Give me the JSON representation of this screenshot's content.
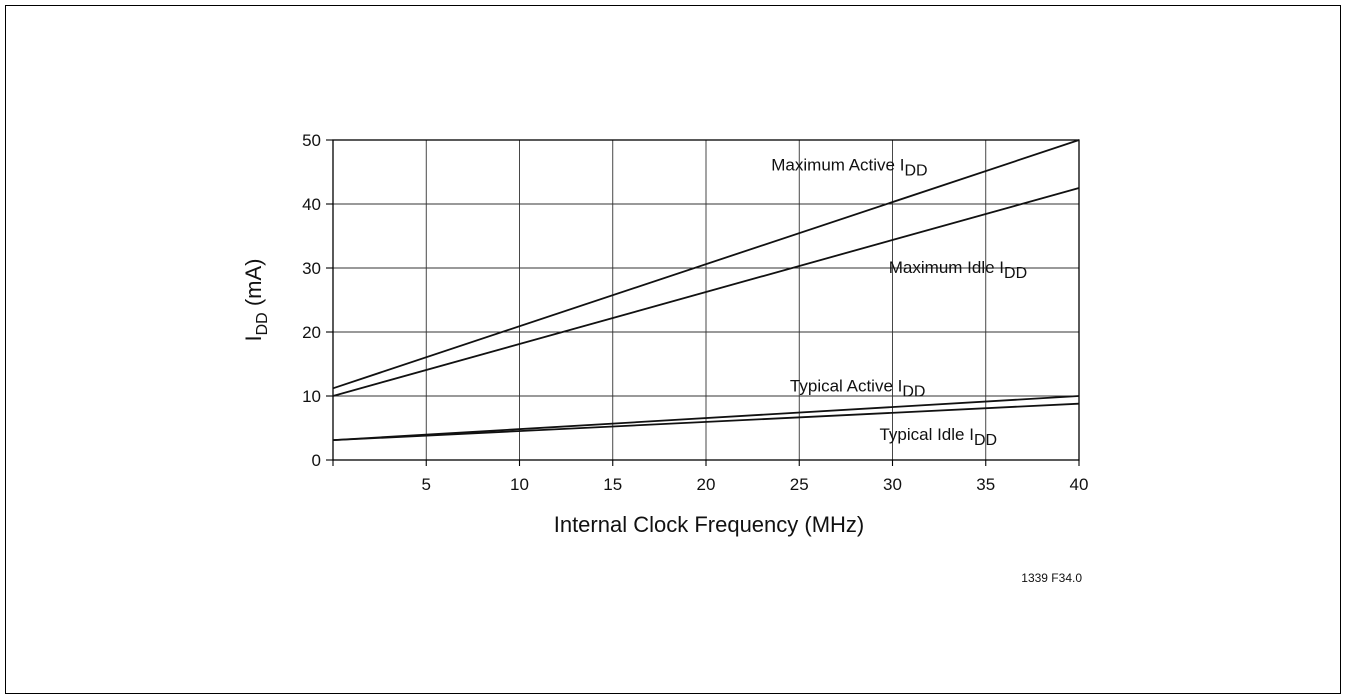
{
  "chart_data": {
    "type": "line",
    "xlabel": "Internal Clock Frequency (MHz)",
    "ylabel_main": "I",
    "ylabel_sub": "DD",
    "ylabel_tail": " (mA)",
    "xlim": [
      0,
      40
    ],
    "ylim": [
      0,
      50
    ],
    "x_ticks": [
      5,
      10,
      15,
      20,
      25,
      30,
      35,
      40
    ],
    "y_ticks": [
      0,
      10,
      20,
      30,
      40,
      50
    ],
    "grid": true,
    "series": [
      {
        "label_main": "Maximum Active I",
        "label_sub": "DD",
        "x": [
          0,
          40
        ],
        "y": [
          11.2,
          50
        ]
      },
      {
        "label_main": "Maximum Idle I",
        "label_sub": "DD",
        "x": [
          0,
          40
        ],
        "y": [
          10,
          42.5
        ]
      },
      {
        "label_main": "Typical Active I",
        "label_sub": "DD",
        "x": [
          0,
          40
        ],
        "y": [
          3.1,
          10
        ]
      },
      {
        "label_main": "Typical Idle I",
        "label_sub": "DD",
        "x": [
          0,
          40
        ],
        "y": [
          3.1,
          8.8
        ]
      }
    ],
    "figure_id": "1339 F34.0"
  }
}
